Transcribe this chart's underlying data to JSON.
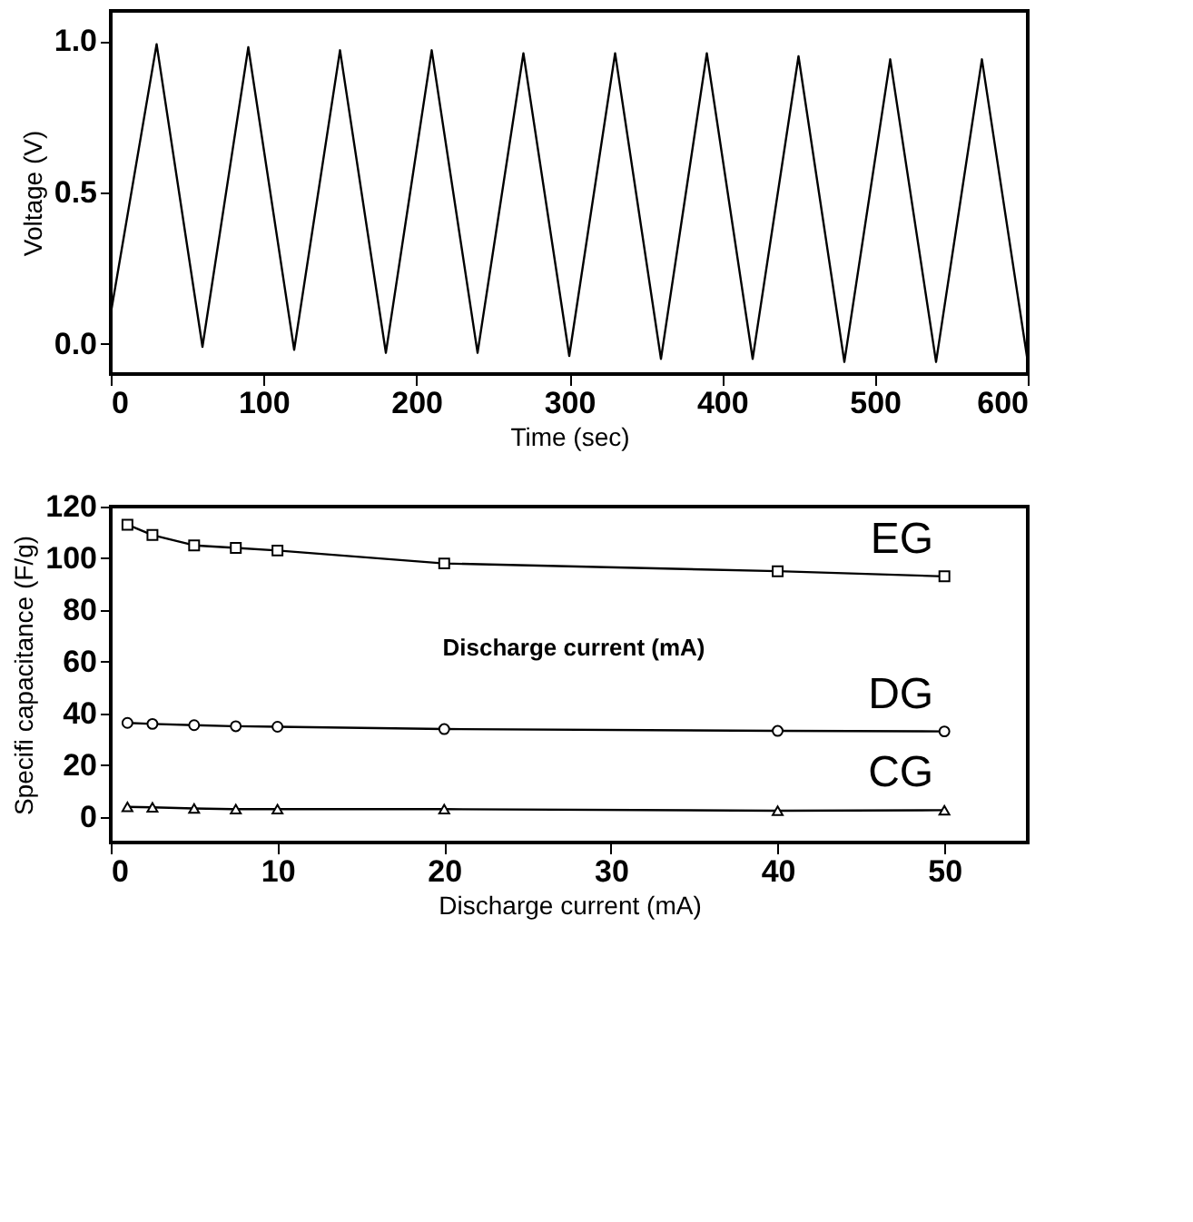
{
  "chart_data": [
    {
      "type": "line",
      "xlabel": "Time (sec)",
      "ylabel": "Voltage (V)",
      "xlim": [
        0,
        600
      ],
      "ylim": [
        -0.1,
        1.1
      ],
      "xticks": [
        0,
        100,
        200,
        300,
        400,
        500,
        600
      ],
      "yticks": [
        {
          "value": 0,
          "label": "0.0"
        },
        0.5,
        {
          "value": 1,
          "label": "1.0"
        }
      ],
      "grid": false,
      "marker": "none",
      "line_style": "solid",
      "x": [
        0,
        30,
        60,
        90,
        120,
        150,
        180,
        210,
        240,
        270,
        300,
        330,
        360,
        390,
        420,
        450,
        480,
        510,
        540,
        570,
        600
      ],
      "series": [
        {
          "color": "#000000",
          "values": [
            0.1,
            0.99,
            -0.01,
            0.98,
            -0.02,
            0.97,
            -0.03,
            0.97,
            -0.03,
            0.96,
            -0.04,
            0.96,
            -0.05,
            0.96,
            -0.05,
            0.95,
            -0.06,
            0.94,
            -0.06,
            0.94,
            -0.06
          ]
        }
      ]
    },
    {
      "type": "line",
      "xlabel": "Discharge current (mA)",
      "ylabel": "Specifi capacitance (F/g)",
      "xlim": [
        0,
        55
      ],
      "ylim": [
        -10,
        120
      ],
      "xticks": [
        0,
        10,
        20,
        30,
        40,
        50
      ],
      "yticks": [
        0,
        20,
        40,
        60,
        80,
        100,
        120
      ],
      "grid": false,
      "line_style": "solid",
      "annotations": [
        "Discharge current (mA)"
      ],
      "x": [
        1,
        2.5,
        5,
        7.5,
        10,
        20,
        40,
        50
      ],
      "series": [
        {
          "name": "EG",
          "color": "#000000",
          "marker": "square",
          "values": [
            113,
            109,
            105,
            104,
            103,
            98,
            95,
            93
          ]
        },
        {
          "name": "DG",
          "color": "#000000",
          "marker": "circle",
          "values": [
            36.3,
            35.9,
            35.4,
            35,
            34.8,
            33.9,
            33.2,
            33
          ]
        },
        {
          "name": "CG",
          "color": "#000000",
          "marker": "triangle",
          "values": [
            3.8,
            3.6,
            3.2,
            2.9,
            2.9,
            2.9,
            2.3,
            2.5
          ]
        }
      ]
    }
  ]
}
